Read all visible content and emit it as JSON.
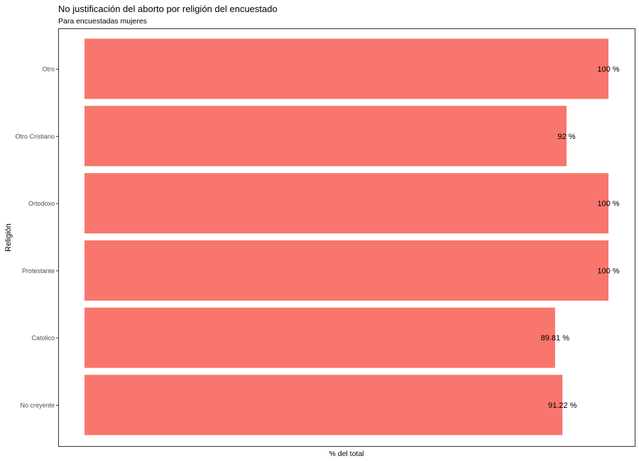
{
  "chart_data": {
    "type": "bar",
    "orientation": "horizontal",
    "title": "No justificación del aborto por religión del encuestado",
    "subtitle": "Para encuestadas mujeres",
    "xlabel": "% del total",
    "ylabel": "Religión",
    "categories": [
      "Otro",
      "Otro Cristiano",
      "Ortodoxo",
      "Protestante",
      "Catolico",
      "No creyente"
    ],
    "values": [
      100,
      92,
      100,
      100,
      89.81,
      91.22
    ],
    "value_labels": [
      "100 %",
      "92 %",
      "100 %",
      "100 %",
      "89.81 %",
      "91.22 %"
    ],
    "xlim": [
      0,
      100
    ],
    "bar_color": "#F8766D",
    "grid": false,
    "legend": "none"
  }
}
